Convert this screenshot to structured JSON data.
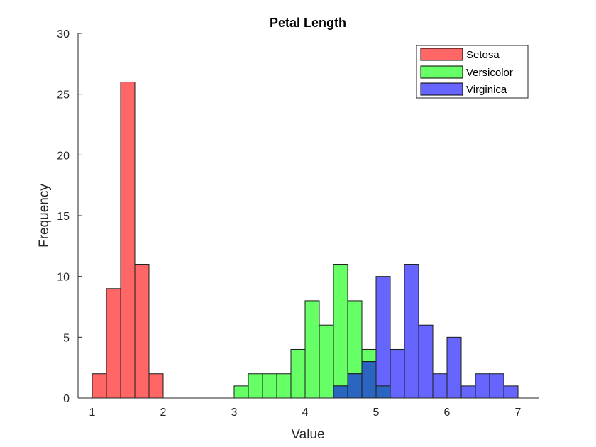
{
  "chart_data": {
    "type": "bar",
    "title": "Petal Length",
    "xlabel": "Value",
    "ylabel": "Frequency",
    "xlim": [
      0.8,
      7.3
    ],
    "ylim": [
      0,
      30
    ],
    "xticks": [
      1,
      2,
      3,
      4,
      5,
      6,
      7
    ],
    "yticks": [
      0,
      5,
      10,
      15,
      20,
      25,
      30
    ],
    "grid": false,
    "legend_position": "top-right",
    "bin_width": 0.2,
    "overlap_color": "#2a66c0",
    "series": [
      {
        "name": "Setosa",
        "color": "#ff6666",
        "bins": [
          [
            1.0,
            2
          ],
          [
            1.2,
            9
          ],
          [
            1.4,
            26
          ],
          [
            1.6,
            11
          ],
          [
            1.8,
            2
          ]
        ]
      },
      {
        "name": "Versicolor",
        "color": "#66ff66",
        "bins": [
          [
            3.0,
            1
          ],
          [
            3.2,
            2
          ],
          [
            3.4,
            2
          ],
          [
            3.6,
            2
          ],
          [
            3.8,
            4
          ],
          [
            4.0,
            8
          ],
          [
            4.2,
            6
          ],
          [
            4.4,
            11
          ],
          [
            4.6,
            8
          ],
          [
            4.8,
            4
          ],
          [
            5.0,
            1
          ]
        ]
      },
      {
        "name": "Virginica",
        "color": "#6666ff",
        "bins": [
          [
            4.4,
            1
          ],
          [
            4.6,
            2
          ],
          [
            4.8,
            3
          ],
          [
            5.0,
            10
          ],
          [
            5.2,
            4
          ],
          [
            5.4,
            11
          ],
          [
            5.6,
            6
          ],
          [
            5.8,
            2
          ],
          [
            6.0,
            5
          ],
          [
            6.2,
            1
          ],
          [
            6.4,
            2
          ],
          [
            6.6,
            2
          ],
          [
            6.8,
            1
          ]
        ]
      }
    ]
  }
}
